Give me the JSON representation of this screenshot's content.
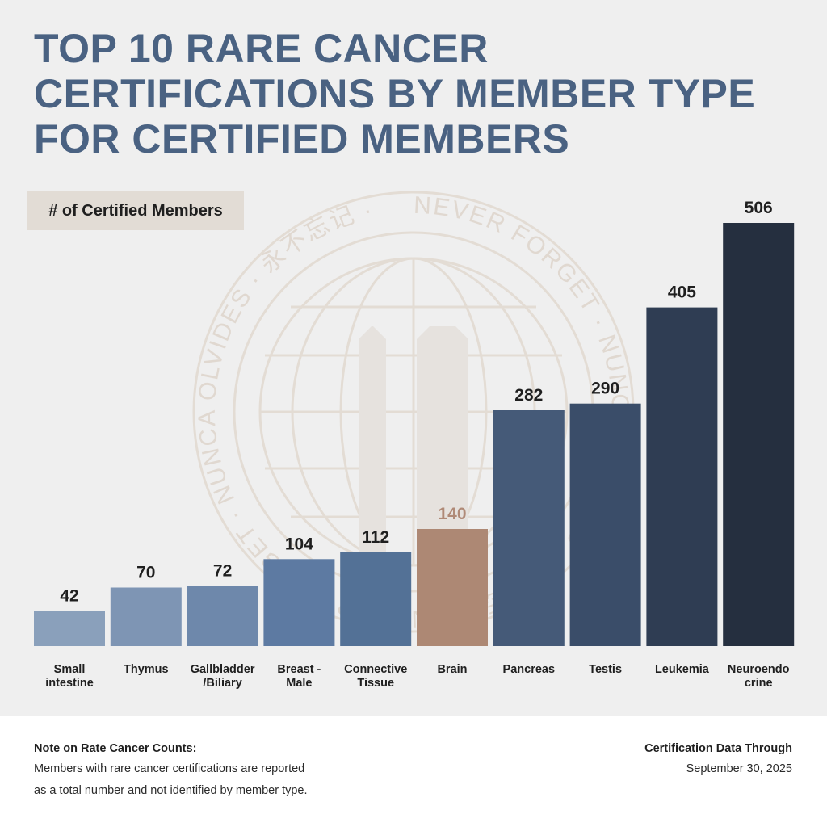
{
  "title_lines": [
    "TOP 10 RARE CANCER",
    "CERTIFICATIONS BY MEMBER TYPE",
    "FOR CERTIFIED MEMBERS"
  ],
  "badge_label": "# of Certified Members",
  "watermark": {
    "ring_text": "NEVER FORGET · NUNCA OLVIDES · 永不忘记 · NEVER FORGET · NUNCA OLVIDES · 永不忘记 ·",
    "icon": "globe-with-twin-towers-seal"
  },
  "chart_data": {
    "type": "bar",
    "title": "TOP 10 RARE CANCER CERTIFICATIONS BY MEMBER TYPE FOR CERTIFIED MEMBERS",
    "ylabel": "# of Certified Members",
    "xlabel": "",
    "ylim": [
      0,
      506
    ],
    "grid": false,
    "categories": [
      [
        "Small",
        "intestine"
      ],
      [
        "Thymus"
      ],
      [
        "Gallbladder",
        "/Biliary"
      ],
      [
        "Breast -",
        "Male"
      ],
      [
        "Connective",
        "Tissue"
      ],
      [
        "Brain"
      ],
      [
        "Pancreas"
      ],
      [
        "Testis"
      ],
      [
        "Leukemia"
      ],
      [
        "Neuroendo",
        "crine"
      ]
    ],
    "values": [
      42,
      70,
      72,
      104,
      112,
      140,
      282,
      290,
      405,
      506
    ],
    "colors": [
      "#8aa0bb",
      "#7e95b4",
      "#6e88ab",
      "#5d7aa2",
      "#537196",
      "#ad8874",
      "#455a78",
      "#3a4d69",
      "#2f3d53",
      "#252f3f"
    ],
    "label_colors": [
      "#1f1f1f",
      "#1f1f1f",
      "#1f1f1f",
      "#1f1f1f",
      "#1f1f1f",
      "#b08a77",
      "#1f1f1f",
      "#1f1f1f",
      "#1f1f1f",
      "#1f1f1f"
    ]
  },
  "footer": {
    "note_heading": "Note on Rate Cancer Counts:",
    "note_lines": [
      "Members with rare cancer certifications are reported",
      "as a total number and not identified by member type."
    ],
    "through_heading": "Certification Data Through",
    "through_date": "September 30, 2025"
  },
  "colors": {
    "title": "#4a6282",
    "background": "#efefef",
    "badge_background": "#e2dcd5",
    "watermark": "#e0d8d0"
  }
}
